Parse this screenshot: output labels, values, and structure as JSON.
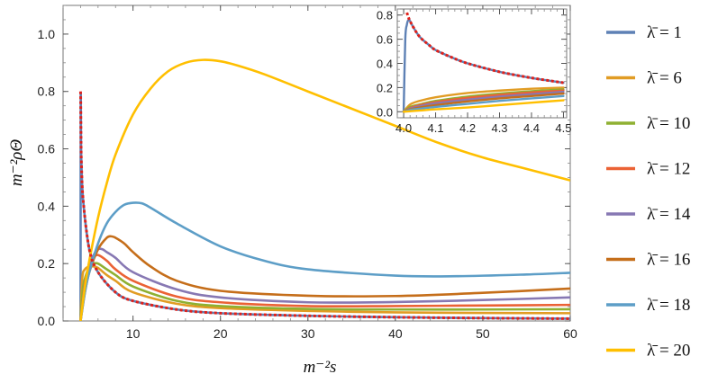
{
  "chart_data": [
    {
      "type": "line",
      "title": "",
      "xlabel": "m⁻²s",
      "ylabel": "m⁻²ρΘ",
      "xlim": [
        2,
        60
      ],
      "ylim": [
        0,
        1.1
      ],
      "xticks": [
        10,
        20,
        30,
        40,
        50,
        60
      ],
      "yticks": [
        0.0,
        0.2,
        0.4,
        0.6,
        0.8,
        1.0
      ],
      "xtick_labels": [
        "10",
        "20",
        "30",
        "40",
        "50",
        "60"
      ],
      "ytick_labels": [
        "0.0",
        "0.2",
        "0.4",
        "0.6",
        "0.8",
        "1.0"
      ],
      "grid": false,
      "legend": "right",
      "series": [
        {
          "name": "λ̄ = 1",
          "color": "#5e81b5",
          "x": [
            4.0,
            4.02,
            4.05,
            4.1,
            4.3,
            5,
            6,
            8,
            10,
            15,
            20,
            30,
            40,
            50,
            60
          ],
          "y": [
            0.0,
            0.76,
            0.64,
            0.55,
            0.42,
            0.25,
            0.17,
            0.1,
            0.07,
            0.04,
            0.027,
            0.018,
            0.013,
            0.01,
            0.008
          ]
        },
        {
          "name": "λ̄ = 6",
          "color": "#e19c24",
          "x": [
            4.0,
            4.2,
            4.5,
            5,
            5.5,
            6,
            7,
            8,
            10,
            15,
            20,
            30,
            40,
            50,
            60
          ],
          "y": [
            0.0,
            0.15,
            0.18,
            0.19,
            0.19,
            0.185,
            0.16,
            0.14,
            0.1,
            0.06,
            0.045,
            0.035,
            0.03,
            0.028,
            0.027
          ]
        },
        {
          "name": "λ̄ = 10",
          "color": "#8fb032",
          "x": [
            4.0,
            4.3,
            5,
            5.5,
            6,
            7,
            8,
            10,
            15,
            20,
            30,
            40,
            50,
            60
          ],
          "y": [
            0.0,
            0.12,
            0.19,
            0.2,
            0.2,
            0.18,
            0.16,
            0.12,
            0.07,
            0.052,
            0.042,
            0.04,
            0.04,
            0.041
          ]
        },
        {
          "name": "λ̄ = 12",
          "color": "#eb6235",
          "x": [
            4.0,
            4.5,
            5,
            5.5,
            6,
            7,
            8,
            10,
            15,
            20,
            30,
            40,
            50,
            60
          ],
          "y": [
            0.0,
            0.13,
            0.19,
            0.22,
            0.23,
            0.21,
            0.18,
            0.14,
            0.085,
            0.065,
            0.052,
            0.052,
            0.054,
            0.056
          ]
        },
        {
          "name": "λ̄ = 14",
          "color": "#8778b3",
          "x": [
            4.0,
            4.5,
            5,
            5.5,
            6,
            6.5,
            7,
            8,
            10,
            15,
            20,
            30,
            40,
            50,
            60
          ],
          "y": [
            0.0,
            0.12,
            0.19,
            0.23,
            0.25,
            0.25,
            0.24,
            0.22,
            0.17,
            0.11,
            0.082,
            0.065,
            0.066,
            0.073,
            0.082
          ]
        },
        {
          "name": "λ̄ = 16",
          "color": "#c56e1a",
          "x": [
            4.0,
            4.5,
            5,
            6,
            7,
            7.5,
            8,
            9,
            10,
            12,
            15,
            20,
            30,
            40,
            50,
            60
          ],
          "y": [
            0.0,
            0.1,
            0.17,
            0.25,
            0.29,
            0.295,
            0.29,
            0.27,
            0.24,
            0.19,
            0.14,
            0.105,
            0.088,
            0.087,
            0.098,
            0.113
          ]
        },
        {
          "name": "λ̄ = 18",
          "color": "#5d9ec7",
          "x": [
            4.0,
            4.5,
            5,
            6,
            7,
            8,
            9,
            10,
            11,
            12,
            15,
            20,
            25,
            30,
            40,
            47,
            55,
            60
          ],
          "y": [
            0.0,
            0.1,
            0.17,
            0.27,
            0.34,
            0.38,
            0.405,
            0.412,
            0.41,
            0.395,
            0.34,
            0.26,
            0.21,
            0.18,
            0.158,
            0.156,
            0.162,
            0.168
          ]
        },
        {
          "name": "λ̄ = 20",
          "color": "#ffbf00",
          "x": [
            4.0,
            4.5,
            5,
            6,
            7,
            8,
            10,
            12,
            14,
            16,
            18,
            20,
            22,
            25,
            30,
            35,
            40,
            45,
            50,
            55,
            60
          ],
          "y": [
            0.0,
            0.12,
            0.21,
            0.36,
            0.48,
            0.58,
            0.72,
            0.81,
            0.87,
            0.9,
            0.91,
            0.905,
            0.89,
            0.86,
            0.8,
            0.74,
            0.68,
            0.62,
            0.57,
            0.53,
            0.49
          ]
        },
        {
          "name": "",
          "color": "#e0211b",
          "dashed": true,
          "x": [
            4.0,
            4.01,
            4.02,
            4.05,
            4.1,
            4.3,
            5,
            6,
            8,
            10,
            15,
            20,
            30,
            40,
            50,
            60
          ],
          "y": [
            0.8,
            0.79,
            0.76,
            0.64,
            0.55,
            0.42,
            0.25,
            0.17,
            0.1,
            0.07,
            0.04,
            0.027,
            0.018,
            0.013,
            0.01,
            0.008
          ]
        }
      ]
    },
    {
      "type": "line",
      "title": "",
      "xlabel": "",
      "ylabel": "",
      "xlim": [
        3.98,
        4.51
      ],
      "ylim": [
        -0.05,
        0.85
      ],
      "xticks": [
        4.0,
        4.1,
        4.2,
        4.3,
        4.4,
        4.5
      ],
      "yticks": [
        0.0,
        0.2,
        0.4,
        0.6,
        0.8
      ],
      "xtick_labels": [
        "4.0",
        "4.1",
        "4.2",
        "4.3",
        "4.4",
        "4.5"
      ],
      "ytick_labels": [
        "0.0",
        "0.2",
        "0.4",
        "0.6",
        "0.8"
      ],
      "grid": false,
      "series": [
        {
          "name": "λ̄ = 1",
          "color": "#5e81b5",
          "x": [
            4.0,
            4.005,
            4.01,
            4.015,
            4.02,
            4.03,
            4.05,
            4.08,
            4.1,
            4.15,
            4.2,
            4.3,
            4.4,
            4.5
          ],
          "y": [
            0.0,
            0.6,
            0.72,
            0.76,
            0.75,
            0.7,
            0.62,
            0.55,
            0.51,
            0.45,
            0.4,
            0.33,
            0.28,
            0.24
          ]
        },
        {
          "name": "λ̄ = 6",
          "color": "#e19c24",
          "x": [
            4.0,
            4.02,
            4.05,
            4.1,
            4.2,
            4.3,
            4.4,
            4.5
          ],
          "y": [
            0.0,
            0.06,
            0.09,
            0.12,
            0.155,
            0.175,
            0.19,
            0.2
          ]
        },
        {
          "name": "λ̄ = 10",
          "color": "#8fb032",
          "x": [
            4.0,
            4.02,
            4.05,
            4.1,
            4.2,
            4.3,
            4.4,
            4.5
          ],
          "y": [
            0.0,
            0.04,
            0.06,
            0.09,
            0.125,
            0.15,
            0.17,
            0.185
          ]
        },
        {
          "name": "λ̄ = 12",
          "color": "#eb6235",
          "x": [
            4.0,
            4.02,
            4.05,
            4.1,
            4.2,
            4.3,
            4.4,
            4.5
          ],
          "y": [
            0.0,
            0.03,
            0.055,
            0.08,
            0.115,
            0.14,
            0.16,
            0.175
          ]
        },
        {
          "name": "λ̄ = 14",
          "color": "#8778b3",
          "x": [
            4.0,
            4.02,
            4.05,
            4.1,
            4.2,
            4.3,
            4.4,
            4.5
          ],
          "y": [
            0.0,
            0.025,
            0.045,
            0.07,
            0.1,
            0.125,
            0.145,
            0.165
          ]
        },
        {
          "name": "λ̄ = 16",
          "color": "#c56e1a",
          "x": [
            4.0,
            4.02,
            4.05,
            4.1,
            4.2,
            4.3,
            4.4,
            4.5
          ],
          "y": [
            0.0,
            0.02,
            0.035,
            0.055,
            0.085,
            0.11,
            0.13,
            0.15
          ]
        },
        {
          "name": "λ̄ = 18",
          "color": "#5d9ec7",
          "x": [
            4.0,
            4.02,
            4.05,
            4.1,
            4.2,
            4.3,
            4.4,
            4.5
          ],
          "y": [
            0.0,
            0.015,
            0.025,
            0.04,
            0.065,
            0.09,
            0.11,
            0.13
          ]
        },
        {
          "name": "λ̄ = 20",
          "color": "#ffbf00",
          "x": [
            4.0,
            4.05,
            4.1,
            4.2,
            4.3,
            4.4,
            4.5
          ],
          "y": [
            0.0,
            0.01,
            0.02,
            0.035,
            0.055,
            0.075,
            0.095
          ]
        },
        {
          "name": "",
          "color": "#e0211b",
          "dashed": true,
          "x": [
            4.01,
            4.015,
            4.02,
            4.03,
            4.05,
            4.08,
            4.1,
            4.15,
            4.2,
            4.3,
            4.4,
            4.5
          ],
          "y": [
            0.82,
            0.78,
            0.75,
            0.7,
            0.62,
            0.55,
            0.51,
            0.45,
            0.4,
            0.33,
            0.28,
            0.24
          ]
        }
      ]
    }
  ],
  "legend": [
    {
      "label": "λ̄ = 1",
      "color": "#5e81b5"
    },
    {
      "label": "λ̄ = 6",
      "color": "#e19c24"
    },
    {
      "label": "λ̄ = 10",
      "color": "#8fb032"
    },
    {
      "label": "λ̄ = 12",
      "color": "#eb6235"
    },
    {
      "label": "λ̄ = 14",
      "color": "#8778b3"
    },
    {
      "label": "λ̄ = 16",
      "color": "#c56e1a"
    },
    {
      "label": "λ̄ = 18",
      "color": "#5d9ec7"
    },
    {
      "label": "λ̄ = 20",
      "color": "#ffbf00"
    }
  ]
}
